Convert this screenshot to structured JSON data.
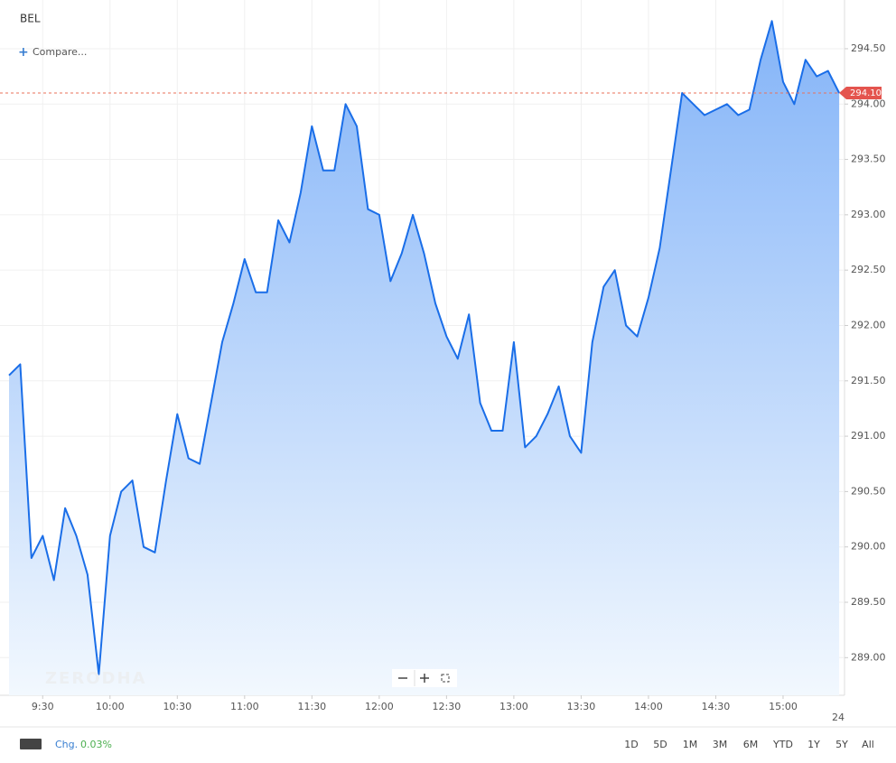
{
  "chart_data": {
    "type": "area",
    "title": "BEL",
    "compare": "Compare...",
    "watermark": "ZERODHA",
    "categories": [
      null,
      null,
      null,
      "9:30",
      null,
      null,
      null,
      null,
      null,
      "10:00",
      null,
      null,
      null,
      null,
      null,
      "10:30",
      null,
      null,
      null,
      null,
      null,
      "11:00",
      null,
      null,
      null,
      null,
      null,
      "11:30",
      null,
      null,
      null,
      null,
      null,
      "12:00",
      null,
      null,
      null,
      null,
      null,
      "12:30",
      null,
      null,
      null,
      null,
      null,
      "13:00",
      null,
      null,
      null,
      null,
      null,
      "13:30",
      null,
      null,
      null,
      null,
      null,
      "14:00",
      null,
      null,
      null,
      null,
      null,
      "14:30",
      null,
      null,
      null,
      null,
      null,
      "15:00",
      null,
      null,
      null,
      null,
      null
    ],
    "series": [
      {
        "name": "BEL",
        "color": "#1a6ee8",
        "values": [
          291.55,
          291.65,
          289.9,
          290.1,
          289.7,
          290.35,
          290.1,
          289.75,
          288.85,
          290.1,
          290.5,
          290.6,
          290.0,
          289.95,
          290.6,
          291.2,
          290.8,
          290.75,
          291.3,
          291.85,
          292.2,
          292.6,
          292.3,
          292.3,
          292.95,
          292.75,
          293.2,
          293.8,
          293.4,
          293.4,
          294.0,
          293.8,
          293.05,
          293.0,
          292.4,
          292.65,
          293.0,
          292.65,
          292.2,
          291.9,
          291.7,
          292.1,
          291.3,
          291.05,
          291.05,
          291.85,
          290.9,
          291.0,
          291.2,
          291.45,
          291.0,
          290.85,
          291.85,
          292.35,
          292.5,
          292.0,
          291.9,
          292.25,
          292.7,
          293.4,
          294.1,
          294.0,
          293.9,
          293.95,
          294.0,
          293.9,
          293.95,
          294.4,
          294.75,
          294.2,
          294.0,
          294.4,
          294.25,
          294.3,
          294.1
        ]
      }
    ],
    "last_price": {
      "value": 294.1,
      "label": "294.10"
    },
    "ylim": [
      288.66,
      294.94
    ],
    "yticks": [
      {
        "value": 289,
        "label": "289.00"
      },
      {
        "value": 289.5,
        "label": "289.50"
      },
      {
        "value": 290,
        "label": "290.00"
      },
      {
        "value": 290.5,
        "label": "290.50"
      },
      {
        "value": 291,
        "label": "291.00"
      },
      {
        "value": 291.5,
        "label": "291.50"
      },
      {
        "value": 292,
        "label": "292.00"
      },
      {
        "value": 292.5,
        "label": "292.50"
      },
      {
        "value": 293,
        "label": "293.00"
      },
      {
        "value": 293.5,
        "label": "293.50"
      },
      {
        "value": 294,
        "label": "294.00"
      },
      {
        "value": 294.5,
        "label": "294.50"
      }
    ],
    "grid": true,
    "date_label": "24"
  },
  "footer": {
    "change_label": "Chg.",
    "change_value": "0.03%",
    "ranges": [
      "1D",
      "5D",
      "1M",
      "3M",
      "6M",
      "YTD",
      "1Y",
      "5Y",
      "All"
    ]
  }
}
